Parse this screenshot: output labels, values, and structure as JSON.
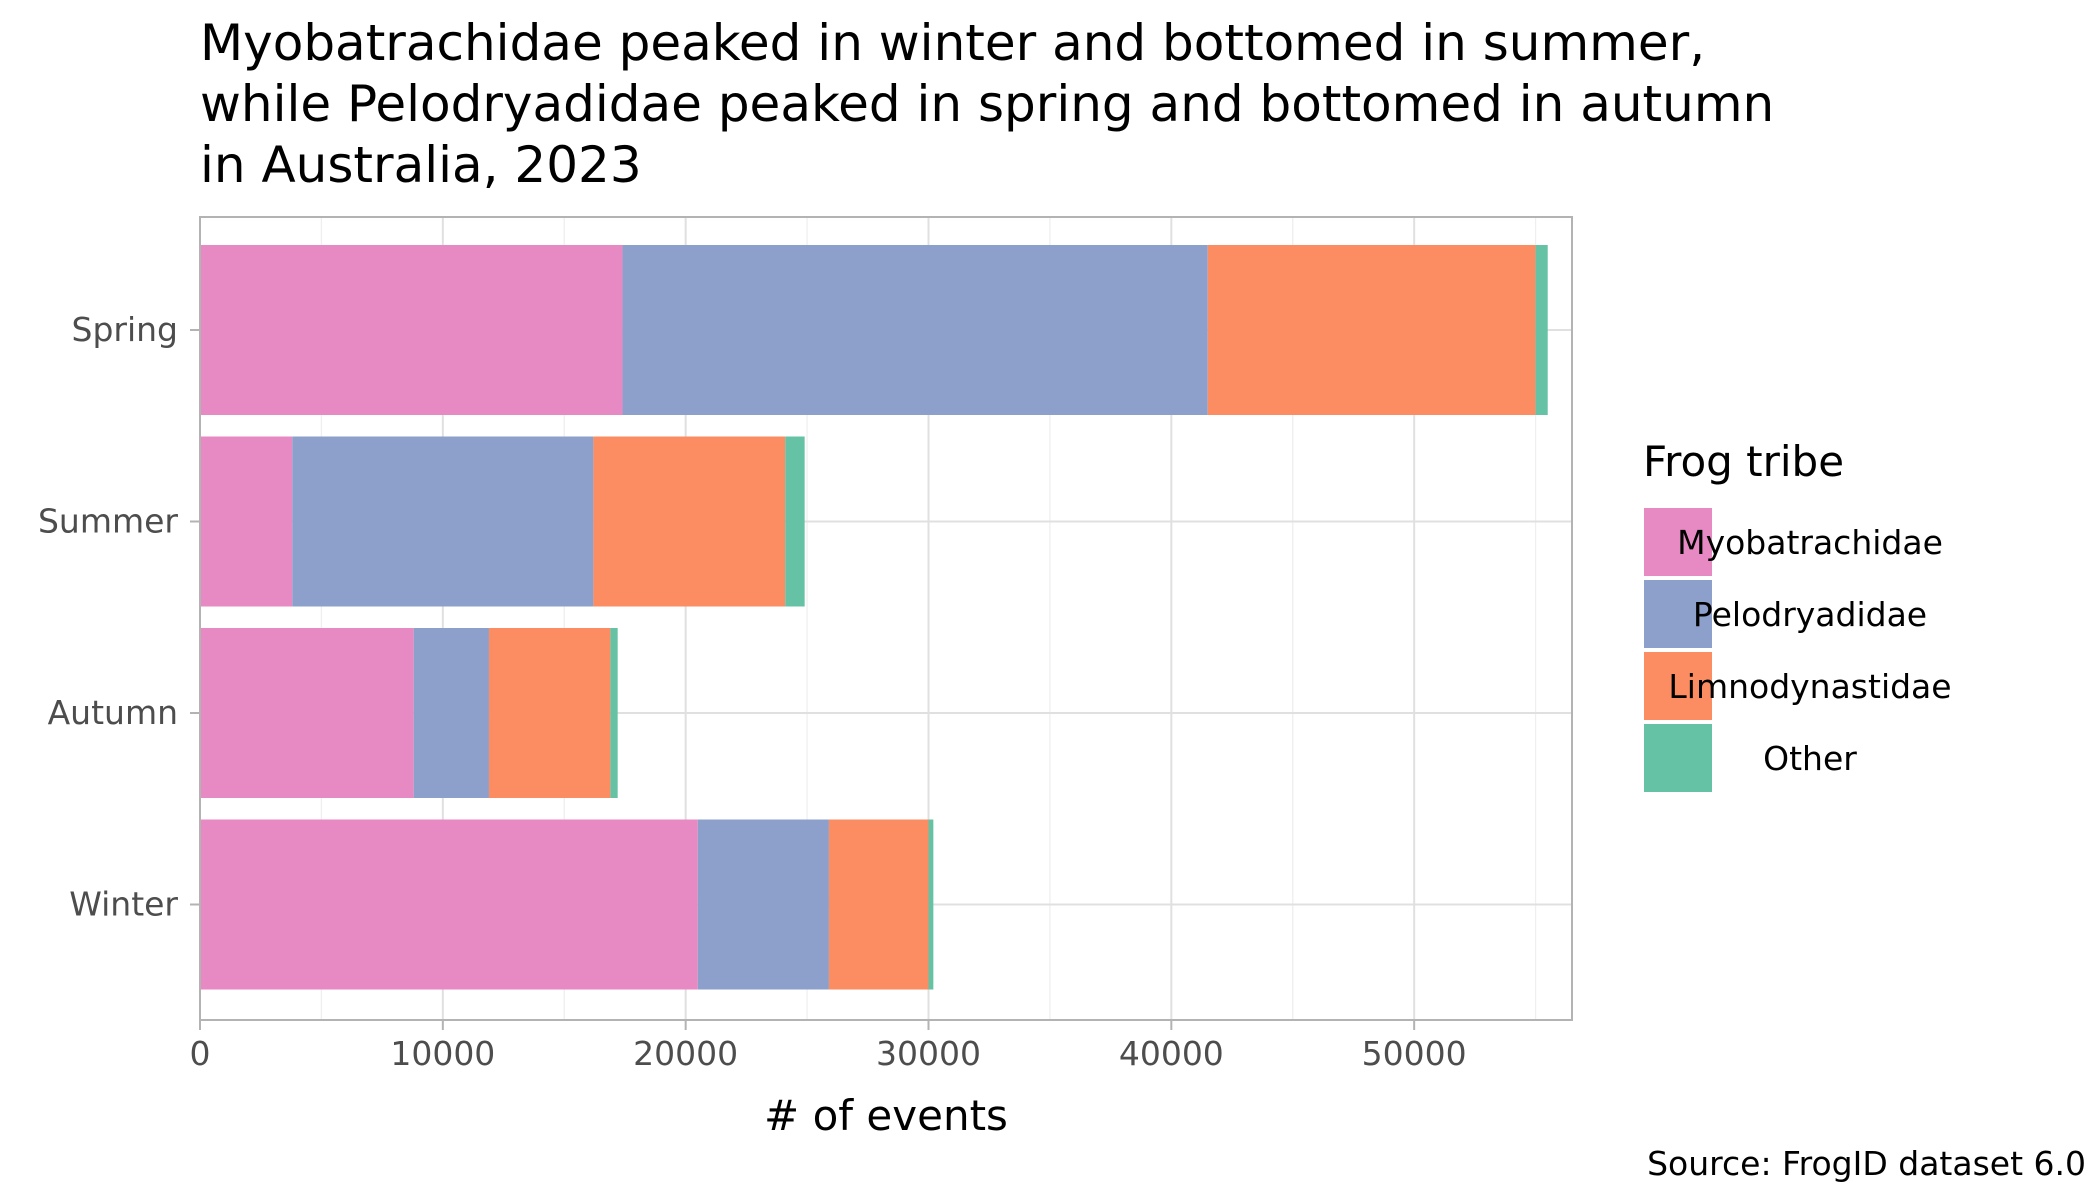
{
  "chart_data": {
    "type": "bar",
    "orientation": "horizontal",
    "stacked": true,
    "title_lines": [
      "Myobatrachidae peaked in winter and bottomed in summer,",
      "while Pelodryadidae peaked in spring and bottomed in autumn",
      "in Australia, 2023"
    ],
    "xlabel": "# of events",
    "ylabel": "",
    "categories": [
      "Spring",
      "Summer",
      "Autumn",
      "Winter"
    ],
    "series": [
      {
        "name": "Myobatrachidae",
        "color": "#e78ac3",
        "values": [
          17400,
          3800,
          8800,
          20500
        ]
      },
      {
        "name": "Pelodryadidae",
        "color": "#8da0cb",
        "values": [
          24100,
          12400,
          3100,
          5400
        ]
      },
      {
        "name": "Limnodynastidae",
        "color": "#fc8d62",
        "values": [
          13500,
          7900,
          5000,
          4100
        ]
      },
      {
        "name": "Other",
        "color": "#66c2a5",
        "values": [
          500,
          800,
          300,
          200
        ]
      }
    ],
    "xlim": [
      0,
      56500
    ],
    "xticks": [
      0,
      10000,
      20000,
      30000,
      40000,
      50000
    ],
    "xtick_labels": [
      "0",
      "10000",
      "20000",
      "30000",
      "40000",
      "50000"
    ],
    "grid": true,
    "legend_title": "Frog tribe",
    "legend_position": "right",
    "caption": "Source: FrogID dataset 6.0"
  }
}
